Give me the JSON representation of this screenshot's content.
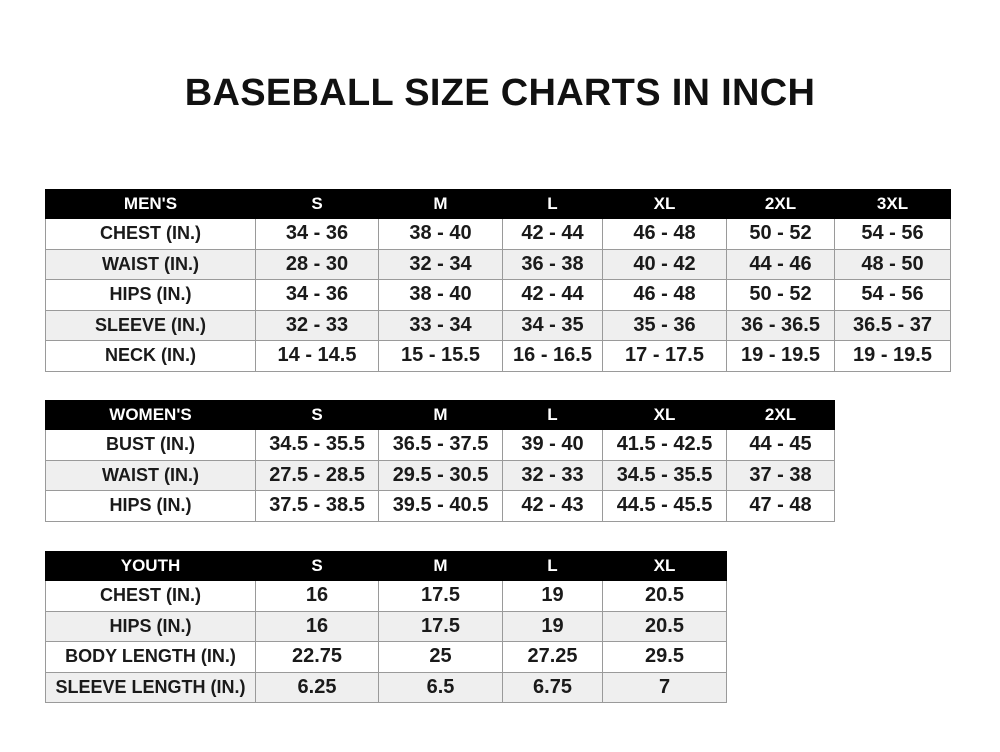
{
  "title": "BASEBALL SIZE CHARTS IN INCH",
  "colors": {
    "header_bg": "#000000",
    "header_text": "#ffffff",
    "alt_row": "#efefef",
    "border": "#9a9a9a"
  },
  "tables": [
    {
      "id": "men",
      "header": [
        "MEN'S",
        "S",
        "M",
        "L",
        "XL",
        "2XL",
        "3XL"
      ],
      "rows": [
        [
          "CHEST (IN.)",
          "34 - 36",
          "38 - 40",
          "42 - 44",
          "46 - 48",
          "50 - 52",
          "54 - 56"
        ],
        [
          "WAIST (IN.)",
          "28 - 30",
          "32 - 34",
          "36 - 38",
          "40 - 42",
          "44 - 46",
          "48 - 50"
        ],
        [
          "HIPS (IN.)",
          "34 - 36",
          "38 - 40",
          "42 - 44",
          "46 - 48",
          "50 - 52",
          "54 - 56"
        ],
        [
          "SLEEVE (IN.)",
          "32 - 33",
          "33 - 34",
          "34 - 35",
          "35 - 36",
          "36 - 36.5",
          "36.5 - 37"
        ],
        [
          "NECK (IN.)",
          "14 - 14.5",
          "15 - 15.5",
          "16 - 16.5",
          "17 - 17.5",
          "19 - 19.5",
          "19 - 19.5"
        ]
      ]
    },
    {
      "id": "women",
      "header": [
        "WOMEN'S",
        "S",
        "M",
        "L",
        "XL",
        "2XL"
      ],
      "rows": [
        [
          "BUST (IN.)",
          "34.5 - 35.5",
          "36.5 - 37.5",
          "39 - 40",
          "41.5 - 42.5",
          "44 - 45"
        ],
        [
          "WAIST (IN.)",
          "27.5 - 28.5",
          "29.5 - 30.5",
          "32 - 33",
          "34.5 - 35.5",
          "37 - 38"
        ],
        [
          "HIPS (IN.)",
          "37.5 - 38.5",
          "39.5 - 40.5",
          "42 - 43",
          "44.5 - 45.5",
          "47 - 48"
        ]
      ]
    },
    {
      "id": "youth",
      "header": [
        "YOUTH",
        "S",
        "M",
        "L",
        "XL"
      ],
      "rows": [
        [
          "CHEST (IN.)",
          "16",
          "17.5",
          "19",
          "20.5"
        ],
        [
          "HIPS (IN.)",
          "16",
          "17.5",
          "19",
          "20.5"
        ],
        [
          "BODY LENGTH (IN.)",
          "22.75",
          "25",
          "27.25",
          "29.5"
        ],
        [
          "SLEEVE LENGTH (IN.)",
          "6.25",
          "6.5",
          "6.75",
          "7"
        ]
      ]
    }
  ]
}
